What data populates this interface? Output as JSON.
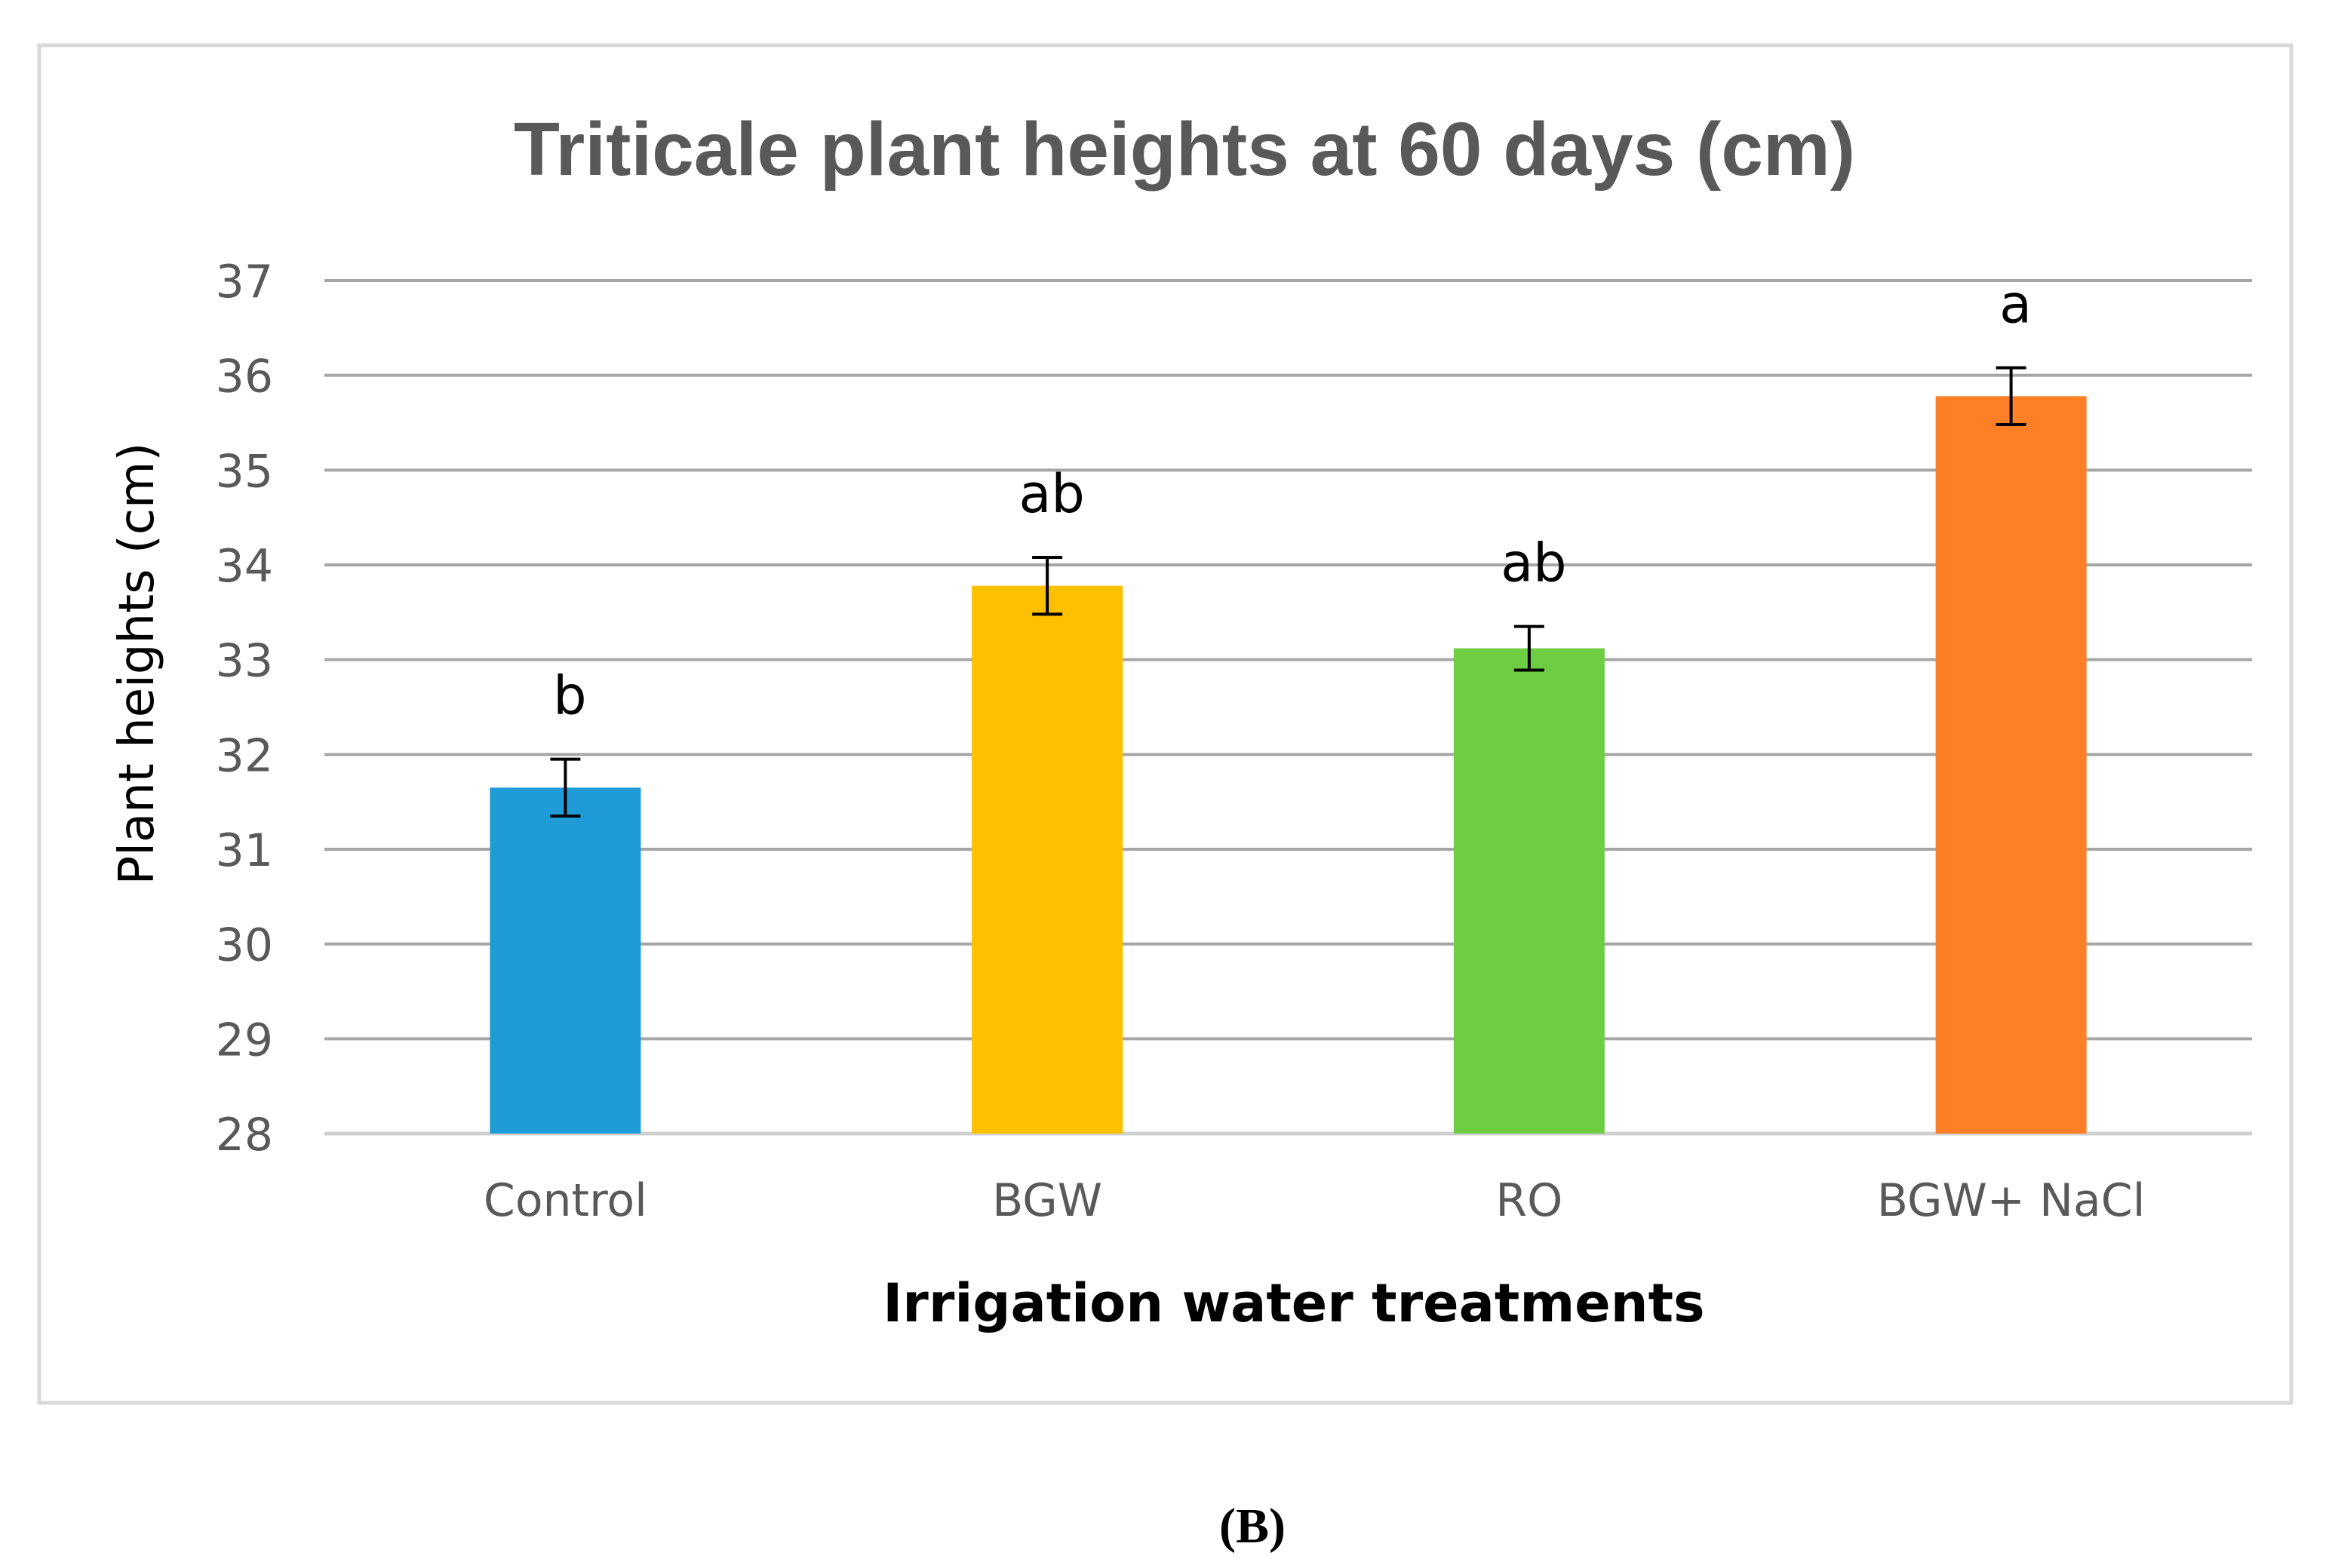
{
  "chart_data": {
    "type": "bar",
    "title": "Triticale plant heights at 60 days (cm)",
    "xlabel": "Irrigation water treatments",
    "ylabel": "Plant heights (cm)",
    "ylim": [
      28,
      37
    ],
    "yticks": [
      28,
      29,
      30,
      31,
      32,
      33,
      34,
      35,
      36,
      37
    ],
    "ytick_labels": [
      "28",
      "29",
      "30",
      "31",
      "32",
      "33",
      "34",
      "35",
      "36",
      "37"
    ],
    "grid": true,
    "categories": [
      "Control",
      "BGW",
      "RO",
      "BGW+ NaCl"
    ],
    "values": [
      31.65,
      33.78,
      33.12,
      35.78
    ],
    "errors": [
      0.3,
      0.3,
      0.23,
      0.3
    ],
    "significance_letters": [
      "b",
      "ab",
      "ab",
      "a"
    ],
    "colors": [
      "#1F9CD8",
      "#FFC000",
      "#6DCE44",
      "#FF7F27"
    ]
  },
  "caption": "(B)"
}
